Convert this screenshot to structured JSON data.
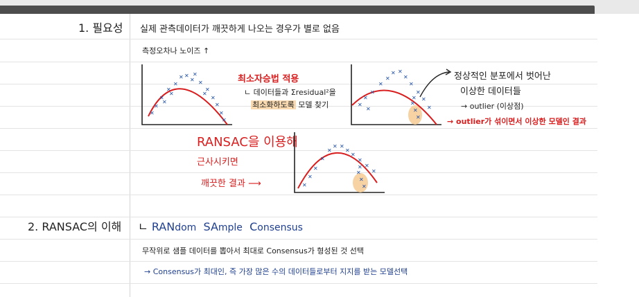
{
  "section1": {
    "heading": "1. 필요성",
    "line1": "실제 관측데이터가 깨끗하게 나오는 경우가 별로 없음",
    "line2": "측정오차나 노이즈 ↑",
    "lsm_title": "최소자승법 적용",
    "lsm_note_a": "ㄴ 데이터들과 Σresidual²을",
    "lsm_note_b": "최소화하도록",
    "lsm_note_c": "모델 찾기",
    "outlier_a": "정상적인 분포에서 벗어난",
    "outlier_b": "이상한 데이터들",
    "outlier_c": "→ outlier (이상점)",
    "outlier_d": "→ outlier가 섞이면서 이상한 모델인 결과",
    "ransac_a": "RANSAC을 이용해",
    "ransac_b": "근사시키면",
    "ransac_c": "깨끗한 결과 ⟶"
  },
  "section2": {
    "heading": "2. RANSAC의 이해",
    "prefix": "ㄴ",
    "acr": [
      {
        "cap": "RAN",
        "rest": "dom"
      },
      {
        "cap": "SA",
        "rest": "mple"
      },
      {
        "cap": "C",
        "rest": "onsensus"
      }
    ],
    "line2": "무작위로 샘플 데이터를 뽑아서 최대로 Consensus가 형성된 것 선택",
    "line3": "→ Consensus가 최대인, 즉 가장 많은 수의 데이터들로부터 지지를 받는 모델선택"
  },
  "colors": {
    "curve": "#d81e1e",
    "points": "#1f4fa8",
    "highlight": "#f7d3a4",
    "accent": "#d81e1e"
  }
}
